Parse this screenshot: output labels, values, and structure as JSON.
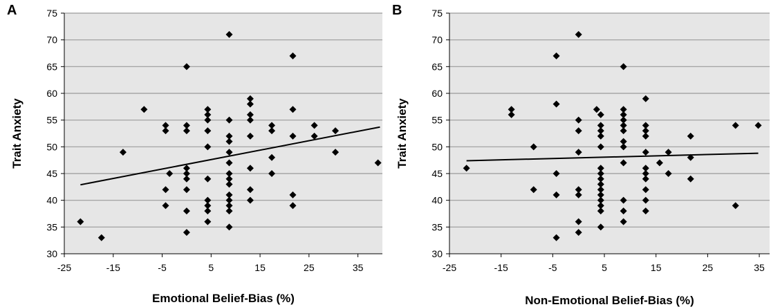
{
  "chart_data": [
    {
      "type": "scatter",
      "panel": "A",
      "xlabel": "Emotional Belief-Bias (%)",
      "ylabel": "Trait Anxiety",
      "xlim": [
        -25,
        40
      ],
      "ylim": [
        30,
        75
      ],
      "xticks": [
        "-25",
        "-15",
        "-5",
        "5",
        "15",
        "25",
        "35"
      ],
      "yticks": [
        "30",
        "35",
        "40",
        "45",
        "50",
        "55",
        "60",
        "65",
        "70",
        "75"
      ],
      "grid": "horizontal",
      "points": [
        [
          -21.7,
          36
        ],
        [
          -17.4,
          33
        ],
        [
          -13,
          49
        ],
        [
          -8.7,
          57
        ],
        [
          -4.3,
          54
        ],
        [
          -4.3,
          53
        ],
        [
          -4.3,
          42
        ],
        [
          -4.3,
          39
        ],
        [
          -3.5,
          45
        ],
        [
          0,
          65
        ],
        [
          0,
          54
        ],
        [
          0,
          53
        ],
        [
          0,
          46
        ],
        [
          0,
          45
        ],
        [
          0,
          44
        ],
        [
          0,
          42
        ],
        [
          0,
          38
        ],
        [
          0,
          34
        ],
        [
          4.3,
          57
        ],
        [
          4.3,
          56
        ],
        [
          4.3,
          55
        ],
        [
          4.3,
          53
        ],
        [
          4.3,
          50
        ],
        [
          4.3,
          44
        ],
        [
          4.3,
          40
        ],
        [
          4.3,
          39
        ],
        [
          4.3,
          38
        ],
        [
          4.3,
          36
        ],
        [
          8.7,
          71
        ],
        [
          8.7,
          55
        ],
        [
          8.7,
          52
        ],
        [
          8.7,
          51
        ],
        [
          8.7,
          49
        ],
        [
          8.7,
          47
        ],
        [
          8.7,
          45
        ],
        [
          8.7,
          44
        ],
        [
          8.7,
          43
        ],
        [
          8.7,
          41
        ],
        [
          8.7,
          40
        ],
        [
          8.7,
          39
        ],
        [
          8.7,
          38
        ],
        [
          8.7,
          35
        ],
        [
          13,
          59
        ],
        [
          13,
          58
        ],
        [
          13,
          56
        ],
        [
          13,
          55
        ],
        [
          13,
          52
        ],
        [
          13,
          46
        ],
        [
          13,
          42
        ],
        [
          13,
          40
        ],
        [
          17.4,
          54
        ],
        [
          17.4,
          53
        ],
        [
          17.4,
          48
        ],
        [
          17.4,
          45
        ],
        [
          21.7,
          67
        ],
        [
          21.7,
          57
        ],
        [
          21.7,
          52
        ],
        [
          21.7,
          41
        ],
        [
          21.7,
          39
        ],
        [
          26.1,
          54
        ],
        [
          26.1,
          52
        ],
        [
          30.4,
          53
        ],
        [
          30.4,
          49
        ],
        [
          39.1,
          47
        ]
      ],
      "trendline": {
        "x": [
          -21.7,
          39.5
        ],
        "y": [
          42.9,
          53.7
        ]
      }
    },
    {
      "type": "scatter",
      "panel": "B",
      "xlabel": "Non-Emotional Belief-Bias (%)",
      "ylabel": "Trait Anxiety",
      "xlim": [
        -25,
        37
      ],
      "ylim": [
        30,
        75
      ],
      "xticks": [
        "-25",
        "-15",
        "-5",
        "5",
        "15",
        "25",
        "35"
      ],
      "yticks": [
        "30",
        "35",
        "40",
        "45",
        "50",
        "55",
        "60",
        "65",
        "70",
        "75"
      ],
      "grid": "horizontal",
      "points": [
        [
          -21.7,
          46
        ],
        [
          -13,
          57
        ],
        [
          -13,
          56
        ],
        [
          -8.7,
          50
        ],
        [
          -8.7,
          42
        ],
        [
          -4.3,
          67
        ],
        [
          -4.3,
          58
        ],
        [
          -4.3,
          45
        ],
        [
          -4.3,
          41
        ],
        [
          -4.3,
          33
        ],
        [
          0,
          71
        ],
        [
          0,
          55
        ],
        [
          0,
          53
        ],
        [
          0,
          49
        ],
        [
          0,
          42
        ],
        [
          0,
          41
        ],
        [
          0,
          36
        ],
        [
          0,
          34
        ],
        [
          3.5,
          57
        ],
        [
          4.3,
          56
        ],
        [
          4.3,
          54
        ],
        [
          4.3,
          53
        ],
        [
          4.3,
          52
        ],
        [
          4.3,
          50
        ],
        [
          4.3,
          46
        ],
        [
          4.3,
          45
        ],
        [
          4.3,
          44
        ],
        [
          4.3,
          43
        ],
        [
          4.3,
          42
        ],
        [
          4.3,
          41
        ],
        [
          4.3,
          40
        ],
        [
          4.3,
          39
        ],
        [
          4.3,
          38
        ],
        [
          4.3,
          35
        ],
        [
          8.7,
          65
        ],
        [
          8.7,
          57
        ],
        [
          8.7,
          56
        ],
        [
          8.7,
          55
        ],
        [
          8.7,
          54
        ],
        [
          8.7,
          53
        ],
        [
          8.7,
          51
        ],
        [
          8.7,
          50
        ],
        [
          8.7,
          47
        ],
        [
          8.7,
          40
        ],
        [
          8.7,
          38
        ],
        [
          8.7,
          36
        ],
        [
          13,
          59
        ],
        [
          13,
          54
        ],
        [
          13,
          53
        ],
        [
          13,
          52
        ],
        [
          13,
          49
        ],
        [
          13,
          46
        ],
        [
          13,
          45
        ],
        [
          13,
          44
        ],
        [
          13,
          42
        ],
        [
          13,
          40
        ],
        [
          13,
          38
        ],
        [
          15.7,
          47
        ],
        [
          17.4,
          49
        ],
        [
          17.4,
          45
        ],
        [
          21.7,
          52
        ],
        [
          21.7,
          48
        ],
        [
          21.7,
          44
        ],
        [
          30.4,
          54
        ],
        [
          30.4,
          39
        ],
        [
          34.8,
          54
        ]
      ],
      "trendline": {
        "x": [
          -21.7,
          34.8
        ],
        "y": [
          47.4,
          48.8
        ]
      }
    }
  ]
}
